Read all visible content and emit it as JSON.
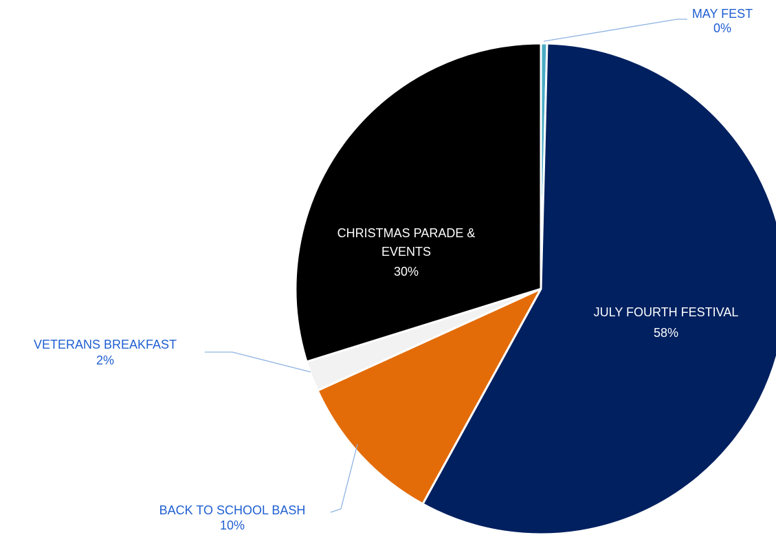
{
  "chart_data": {
    "type": "pie",
    "title": "",
    "start_angle_deg": 0,
    "direction": "clockwise",
    "slices": [
      {
        "name": "MAY FEST",
        "value": 0.4,
        "label": "0%",
        "color": "#4bacc6",
        "label_color": "#1f5fd1",
        "label_placement": "outside"
      },
      {
        "name": "JULY FOURTH FESTIVAL",
        "value": 57.6,
        "label": "58%",
        "color": "#002060",
        "label_color": "#ffffff",
        "label_placement": "inside"
      },
      {
        "name": "BACK TO SCHOOL BASH",
        "value": 10.2,
        "label": "10%",
        "color": "#e36c09",
        "label_color": "#1f5fd1",
        "label_placement": "outside"
      },
      {
        "name": "VETERANS BREAKFAST",
        "value": 2.0,
        "label": "2%",
        "color": "#f2f2f2",
        "label_color": "#1f5fd1",
        "label_placement": "outside"
      },
      {
        "name": "CHRISTMAS PARADE & EVENTS",
        "value": 29.8,
        "label": "30%",
        "color": "#000000",
        "label_color": "#ffffff",
        "label_placement": "inside"
      }
    ],
    "leader_line_color": "#8db3e2",
    "legend": "none"
  }
}
